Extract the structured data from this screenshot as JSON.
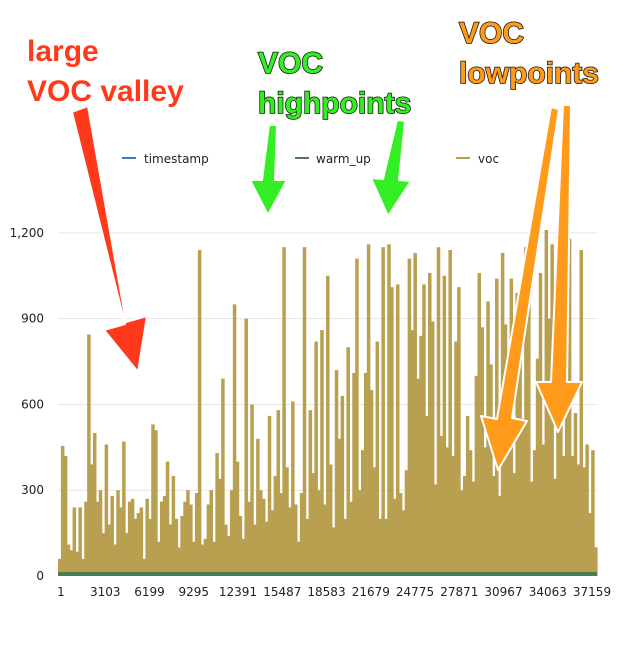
{
  "chart_data": {
    "type": "bar",
    "series": [
      {
        "name": "timestamp",
        "color": "#4a78a8"
      },
      {
        "name": "warm_up",
        "color": "#4f7a4f"
      },
      {
        "name": "voc",
        "color": "#b8a050"
      }
    ],
    "x_tick_labels": [
      "1",
      "3103",
      "6199",
      "9295",
      "12391",
      "15487",
      "18583",
      "21679",
      "24775",
      "27871",
      "30967",
      "34063",
      "37159"
    ],
    "y_tick_labels": [
      "0",
      "300",
      "600",
      "900",
      "1,200"
    ],
    "ylim": [
      0,
      1350
    ],
    "grid": true,
    "legend_placement": "top",
    "voc_values": [
      60,
      455,
      420,
      110,
      90,
      240,
      85,
      240,
      60,
      260,
      845,
      390,
      500,
      260,
      300,
      150,
      460,
      180,
      280,
      110,
      300,
      240,
      470,
      150,
      260,
      270,
      200,
      220,
      240,
      60,
      270,
      200,
      530,
      510,
      120,
      260,
      280,
      400,
      180,
      350,
      200,
      100,
      210,
      260,
      300,
      250,
      120,
      290,
      1140,
      110,
      130,
      250,
      300,
      120,
      430,
      340,
      690,
      180,
      140,
      300,
      950,
      400,
      210,
      130,
      900,
      260,
      600,
      180,
      480,
      300,
      270,
      190,
      560,
      230,
      350,
      580,
      290,
      1150,
      380,
      240,
      610,
      250,
      120,
      290,
      1150,
      200,
      580,
      360,
      820,
      300,
      860,
      250,
      1050,
      390,
      170,
      720,
      480,
      630,
      200,
      800,
      260,
      710,
      1110,
      300,
      440,
      710,
      1160,
      650,
      380,
      820,
      200,
      1150,
      200,
      1160,
      1010,
      270,
      1020,
      290,
      230,
      370,
      1110,
      860,
      1130,
      690,
      840,
      1020,
      560,
      1060,
      890,
      320,
      1150,
      490,
      1050,
      450,
      1140,
      420,
      820,
      1010,
      300,
      350,
      560,
      440,
      330,
      700,
      1060,
      870,
      450,
      960,
      740,
      350,
      1040,
      280,
      1130,
      880,
      630,
      1040,
      360,
      990,
      810,
      550,
      1150,
      1060,
      330,
      440,
      760,
      1060,
      460,
      1210,
      900,
      1160,
      340,
      1190,
      720,
      420,
      880,
      1180,
      420,
      570,
      390,
      1140,
      380,
      460,
      220,
      440,
      100
    ]
  },
  "annotations": [
    {
      "text": "large",
      "color": "#ff3a1a"
    },
    {
      "text": "VOC valley",
      "color": "#ff3a1a"
    },
    {
      "text": "VOC",
      "color": "#33ee22"
    },
    {
      "text": "highpoints",
      "color": "#33ee22"
    },
    {
      "text": "VOC",
      "color": "#ff9a1a"
    },
    {
      "text": "lowpoints",
      "color": "#ff9a1a"
    }
  ]
}
